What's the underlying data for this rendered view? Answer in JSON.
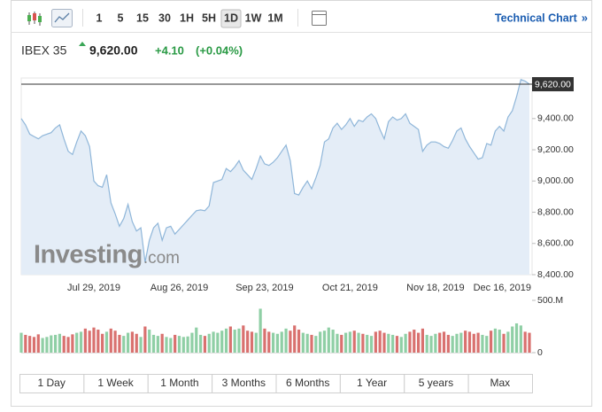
{
  "toolbar": {
    "intervals": [
      "1",
      "5",
      "15",
      "30",
      "1H",
      "5H",
      "1D",
      "1W",
      "1M"
    ],
    "active": "1D",
    "link": "Technical Chart",
    "link_arrow": "»"
  },
  "header": {
    "name": "IBEX 35",
    "price": "9,620.00",
    "change": "+4.10",
    "change_pct": "(+0.04%)"
  },
  "watermark": {
    "brand": "Investing",
    "suffix": ".com"
  },
  "ranges": [
    "1 Day",
    "1 Week",
    "1 Month",
    "3 Months",
    "6 Months",
    "1 Year",
    "5 years",
    "Max"
  ],
  "chart_data": {
    "type": "line",
    "categories": [
      null,
      null,
      null,
      null,
      null,
      null,
      null,
      null,
      null,
      null,
      null,
      null,
      null,
      null,
      null,
      null,
      null,
      "Jul 29, 2019",
      null,
      null,
      null,
      null,
      null,
      null,
      null,
      null,
      null,
      null,
      null,
      null,
      null,
      null,
      null,
      null,
      null,
      null,
      null,
      "Aug 26, 2019",
      null,
      null,
      null,
      null,
      null,
      null,
      null,
      null,
      null,
      null,
      null,
      null,
      null,
      null,
      null,
      null,
      null,
      null,
      null,
      "Sep 23, 2019",
      null,
      null,
      null,
      null,
      null,
      null,
      null,
      null,
      null,
      null,
      null,
      null,
      null,
      null,
      null,
      null,
      null,
      null,
      null,
      "Oct 21, 2019",
      null,
      null,
      null,
      null,
      null,
      null,
      null,
      null,
      null,
      null,
      null,
      null,
      null,
      null,
      null,
      null,
      null,
      null,
      null,
      "Nov 18, 2019",
      null,
      null,
      null,
      null,
      null,
      null,
      null,
      null,
      null,
      null,
      null,
      null,
      null,
      null,
      null,
      null,
      null,
      null,
      null,
      "Dec 16, 2019",
      null,
      null
    ],
    "values": [
      9400,
      9360,
      9300,
      9285,
      9270,
      9290,
      9300,
      9310,
      9340,
      9360,
      9270,
      9190,
      9170,
      9250,
      9320,
      9290,
      9220,
      9000,
      8970,
      8960,
      9040,
      8860,
      8790,
      8710,
      8760,
      8850,
      8740,
      8680,
      8700,
      8480,
      8620,
      8700,
      8730,
      8620,
      8700,
      8710,
      8660,
      8690,
      8720,
      8750,
      8780,
      8810,
      8815,
      8810,
      8840,
      8990,
      9000,
      9010,
      9080,
      9060,
      9090,
      9130,
      9070,
      9040,
      9010,
      9080,
      9160,
      9110,
      9100,
      9120,
      9150,
      9190,
      9230,
      9130,
      8920,
      8910,
      8960,
      9000,
      8950,
      9020,
      9100,
      9250,
      9270,
      9340,
      9370,
      9330,
      9360,
      9400,
      9350,
      9390,
      9380,
      9410,
      9430,
      9400,
      9330,
      9270,
      9380,
      9410,
      9390,
      9400,
      9430,
      9370,
      9350,
      9330,
      9190,
      9230,
      9250,
      9250,
      9240,
      9220,
      9210,
      9260,
      9320,
      9340,
      9270,
      9220,
      9180,
      9140,
      9150,
      9240,
      9230,
      9320,
      9350,
      9320,
      9410,
      9450,
      9540,
      9650,
      9640,
      9620
    ],
    "color": "#8fb6d9",
    "fill_color": "#e4edf7",
    "ylim": [
      8400,
      9660
    ],
    "yticks": [
      {
        "value": 8400,
        "label": "8,400.00"
      },
      {
        "value": 8600,
        "label": "8,600.00"
      },
      {
        "value": 8800,
        "label": "8,800.00"
      },
      {
        "value": 9000,
        "label": "9,000.00"
      },
      {
        "value": 9200,
        "label": "9,200.00"
      },
      {
        "value": 9400,
        "label": "9,400.00"
      }
    ],
    "last_value": 9620,
    "last_label": "9,620.00",
    "volume": {
      "values": [
        190,
        170,
        160,
        150,
        175,
        140,
        150,
        165,
        170,
        180,
        160,
        150,
        175,
        190,
        200,
        230,
        210,
        240,
        220,
        180,
        200,
        230,
        210,
        170,
        160,
        190,
        200,
        180,
        150,
        250,
        220,
        170,
        160,
        180,
        150,
        140,
        170,
        160,
        150,
        155,
        190,
        240,
        170,
        160,
        180,
        200,
        190,
        210,
        230,
        250,
        220,
        230,
        260,
        210,
        200,
        190,
        420,
        230,
        200,
        190,
        180,
        200,
        230,
        210,
        260,
        220,
        190,
        180,
        170,
        160,
        200,
        210,
        240,
        220,
        180,
        170,
        190,
        200,
        210,
        190,
        180,
        170,
        160,
        200,
        210,
        190,
        180,
        170,
        160,
        150,
        180,
        200,
        220,
        190,
        230,
        170,
        160,
        180,
        190,
        200,
        170,
        160,
        180,
        190,
        210,
        200,
        180,
        190,
        170,
        160,
        210,
        230,
        220,
        180,
        200,
        250,
        280,
        260,
        200,
        190
      ],
      "ylim": [
        0,
        500
      ],
      "yticks": [
        0,
        {
          "value": 500,
          "label": "500.M"
        }
      ],
      "up_color": "#8fcfa5",
      "down_color": "#d9716f"
    }
  }
}
